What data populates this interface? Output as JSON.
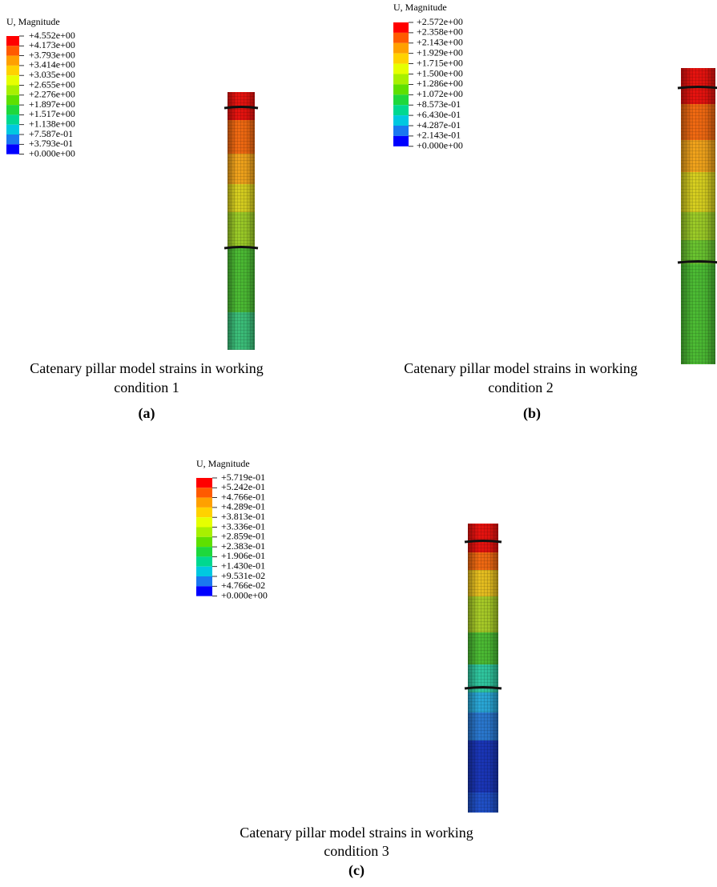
{
  "panels": [
    {
      "legend_title": "U, Magnitude",
      "legend_labels": [
        "+4.552e+00",
        "+4.173e+00",
        "+3.793e+00",
        "+3.414e+00",
        "+3.035e+00",
        "+2.655e+00",
        "+2.276e+00",
        "+1.897e+00",
        "+1.517e+00",
        "+1.138e+00",
        "+7.587e-01",
        "+3.793e-01",
        "+0.000e+00"
      ],
      "caption": [
        "Catenary pillar model strains in working",
        "condition 1"
      ],
      "label": "(a)"
    },
    {
      "legend_title": "U, Magnitude",
      "legend_labels": [
        "+2.572e+00",
        "+2.358e+00",
        "+2.143e+00",
        "+1.929e+00",
        "+1.715e+00",
        "+1.500e+00",
        "+1.286e+00",
        "+1.072e+00",
        "+8.573e-01",
        "+6.430e-01",
        "+4.287e-01",
        "+2.143e-01",
        "+0.000e+00"
      ],
      "caption": [
        "Catenary pillar model strains in working",
        "condition 2"
      ],
      "label": "(b)"
    },
    {
      "legend_title": "U, Magnitude",
      "legend_labels": [
        "+5.719e-01",
        "+5.242e-01",
        "+4.766e-01",
        "+4.289e-01",
        "+3.813e-01",
        "+3.336e-01",
        "+2.859e-01",
        "+2.383e-01",
        "+1.906e-01",
        "+1.430e-01",
        "+9.531e-02",
        "+4.766e-02",
        "+0.000e+00"
      ],
      "caption": [
        "Catenary pillar model strains in working",
        "condition 3"
      ],
      "label": "(c)"
    }
  ]
}
